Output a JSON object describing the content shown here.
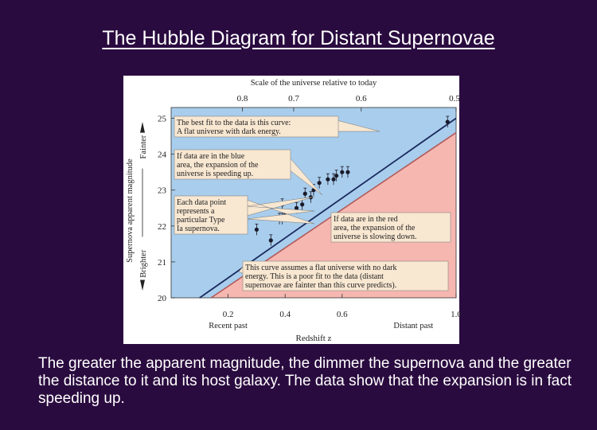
{
  "slide": {
    "title": "The Hubble Diagram for Distant Supernovae",
    "caption": "The greater the apparent magnitude, the dimmer the supernova and the greater the distance to it and its host galaxy. The data show that the expansion is in fact speeding up."
  },
  "colors": {
    "slide_background": "#2a0b3f",
    "blue_region": "#a9cdec",
    "red_region": "#f6b7b0",
    "best_fit_line": "#1a2a5e",
    "no_dark_energy_line": "#b35a5a",
    "data_points": "#1a1a2a",
    "callout_box": "#f8e7d1"
  },
  "chart_data": {
    "type": "scatter",
    "xlabel": "Redshift z",
    "ylabel": "Supernova apparent magnitude",
    "xlim": [
      0,
      1.0
    ],
    "ylim": [
      20,
      25.3
    ],
    "x_ticks": [
      "0.2",
      "0.4",
      "0.6",
      "1.0"
    ],
    "x_tick_values": [
      0.2,
      0.4,
      0.6,
      1.0
    ],
    "y_ticks": [
      "20",
      "21",
      "22",
      "23",
      "24",
      "25"
    ],
    "y_tick_values": [
      20,
      21,
      22,
      23,
      24,
      25
    ],
    "top_axis_label": "Scale of the universe relative to today",
    "top_ticks": [
      "0.8",
      "0.7",
      "0.6",
      "0.5"
    ],
    "top_tick_z_values": [
      0.25,
      0.43,
      0.667,
      1.0
    ],
    "x_end_labels": {
      "left": "Recent past",
      "right": "Distant past"
    },
    "y_direction_labels": {
      "up": "Fainter",
      "down": "Brighter"
    },
    "series": [
      {
        "type": "scatter",
        "points": [
          {
            "x": 0.3,
            "y": 21.9
          },
          {
            "x": 0.35,
            "y": 21.6
          },
          {
            "x": 0.38,
            "y": 22.2
          },
          {
            "x": 0.39,
            "y": 22.2
          },
          {
            "x": 0.39,
            "y": 22.6
          },
          {
            "x": 0.4,
            "y": 22.3
          },
          {
            "x": 0.44,
            "y": 22.5
          },
          {
            "x": 0.46,
            "y": 22.6
          },
          {
            "x": 0.47,
            "y": 22.9
          },
          {
            "x": 0.49,
            "y": 22.8
          },
          {
            "x": 0.5,
            "y": 23.0
          },
          {
            "x": 0.52,
            "y": 23.2
          },
          {
            "x": 0.55,
            "y": 23.3
          },
          {
            "x": 0.57,
            "y": 23.3
          },
          {
            "x": 0.58,
            "y": 23.4
          },
          {
            "x": 0.6,
            "y": 23.5
          },
          {
            "x": 0.62,
            "y": 23.5
          },
          {
            "x": 0.97,
            "y": 24.9
          }
        ]
      },
      {
        "type": "line",
        "points": [
          {
            "x": 0.1,
            "y": 20.0
          },
          {
            "x": 1.0,
            "y": 25.0
          }
        ]
      },
      {
        "type": "line",
        "points": [
          {
            "x": 0.14,
            "y": 20.0
          },
          {
            "x": 1.0,
            "y": 24.6
          }
        ]
      }
    ],
    "annotations": [
      "The best fit to the data is this curve: A flat universe with dark energy.",
      "If data are in the blue area, the expansion of the universe is speeding up.",
      "Each data point represents a particular Type Ia supernova.",
      "If data are in the red area, the expansion of the universe is slowing down.",
      "This curve assumes a flat universe with no dark energy. This is a poor fit to the data (distant supernovae are fainter than this curve predicts)."
    ]
  },
  "callouts": {
    "best_fit": [
      "The best fit to the data is this curve:",
      "A flat universe with dark energy."
    ],
    "blue_area": [
      "If data are in the blue",
      "area, the expansion of the",
      "universe is speeding up."
    ],
    "each_point": [
      "Each data point",
      "represents a",
      "particular Type",
      "Ia supernova."
    ],
    "red_area": [
      "If data are in the red",
      "area, the expansion of the",
      "universe is slowing down."
    ],
    "no_dark_energy": [
      "This curve assumes a flat universe with no dark",
      "energy. This is a poor fit to the data (distant",
      "supernovae are fainter than this curve predicts)."
    ]
  }
}
